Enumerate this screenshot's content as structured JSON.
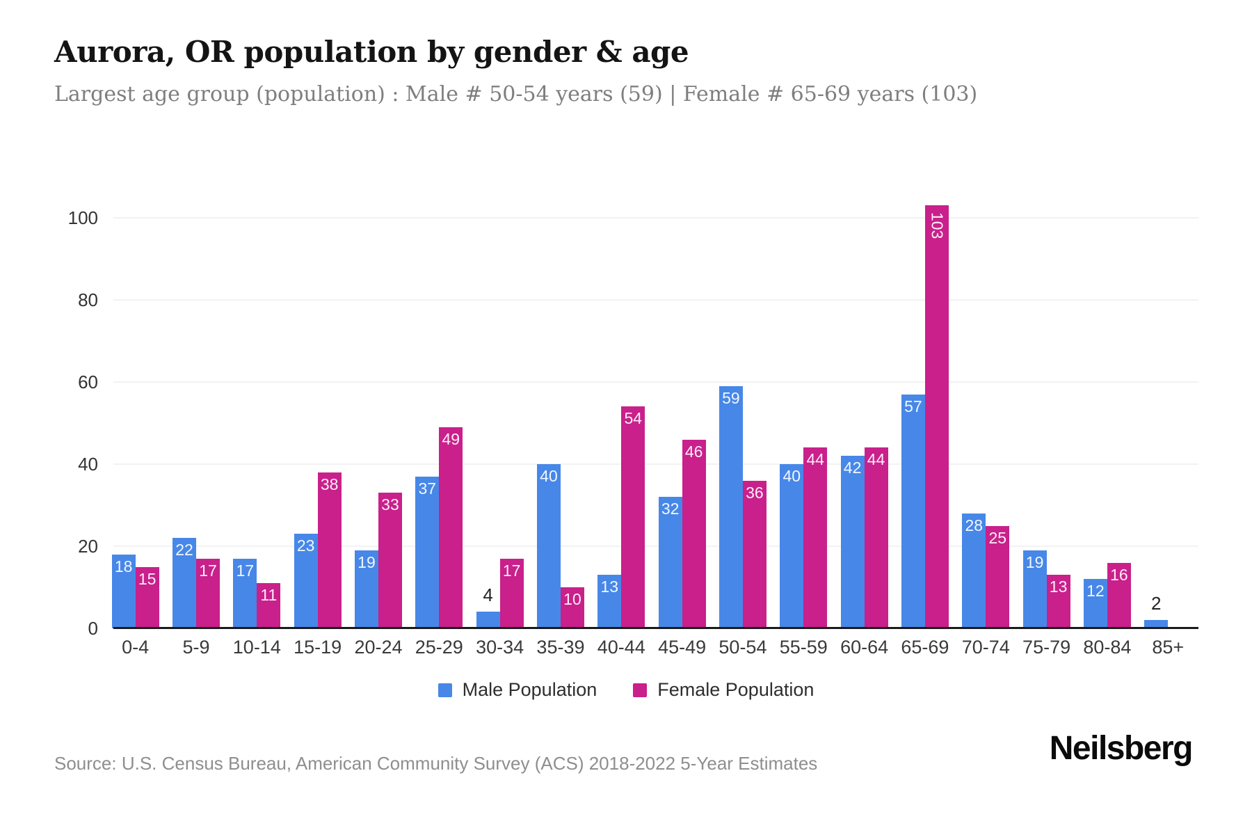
{
  "chart_data": {
    "type": "bar",
    "title": "Aurora, OR population by gender & age",
    "subtitle": "Largest age group (population) : Male # 50-54 years (59) | Female # 65-69 years (103)",
    "categories": [
      "0-4",
      "5-9",
      "10-14",
      "15-19",
      "20-24",
      "25-29",
      "30-34",
      "35-39",
      "40-44",
      "45-49",
      "50-54",
      "55-59",
      "60-64",
      "65-69",
      "70-74",
      "75-79",
      "80-84",
      "85+"
    ],
    "series": [
      {
        "name": "Male Population",
        "color": "#4787e8",
        "values": [
          18,
          22,
          17,
          23,
          19,
          37,
          4,
          40,
          13,
          32,
          59,
          40,
          42,
          57,
          28,
          19,
          12,
          2
        ]
      },
      {
        "name": "Female Population",
        "color": "#c9208b",
        "values": [
          15,
          17,
          11,
          38,
          33,
          49,
          17,
          10,
          54,
          46,
          36,
          44,
          44,
          103,
          25,
          13,
          16,
          0
        ]
      }
    ],
    "ylim": [
      0,
      100
    ],
    "yticks": [
      0,
      20,
      40,
      60,
      80,
      100
    ],
    "grid": "horizontal-light",
    "legend_position": "bottom",
    "axis_line_color": "#1b1b1b",
    "gridline_color": "#f2f2f2",
    "bar_label_inside_color": "#ffffff",
    "bar_label_outside_color": "#222222"
  },
  "footer": {
    "source": "Source: U.S. Census Bureau, American Community Survey (ACS) 2018-2022 5-Year Estimates",
    "brand": "Neilsberg"
  }
}
